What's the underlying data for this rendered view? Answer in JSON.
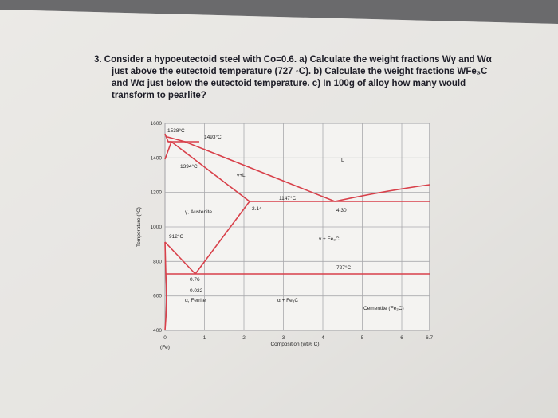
{
  "document": {
    "question": [
      "3. Consider a hypoeutectoid steel with Co=0.6. a) Calculate the weight fractions Wγ and Wα",
      "just above the eutectoid temperature (727 ◦C). b) Calculate the weight fractions WFe₃C",
      "and Wα just below the eutectoid temperature. c) In 100g of alloy how many would",
      "transform to pearlite?"
    ]
  },
  "figure": {
    "y_axis_label": "Temperature (°C)",
    "x_axis_label": "Composition (wt% C)",
    "x_origin_label": "(Fe)",
    "xticks": [
      0,
      1,
      2,
      3,
      4,
      5,
      6,
      6.7
    ],
    "yticks": [
      1600,
      1400,
      1200,
      1000,
      800,
      600,
      400
    ],
    "labels": [
      "1538°C",
      "1493°C",
      "1394°C",
      "γ+L",
      "L",
      "1147°C",
      "2.14",
      "4.30",
      "γ, Austenite",
      "912°C",
      "γ + Fe₃C",
      "727°C",
      "0.76",
      "0.022",
      "α, Ferrite",
      "α + Fe₃C",
      "Cementite (Fe₃C)"
    ]
  }
}
